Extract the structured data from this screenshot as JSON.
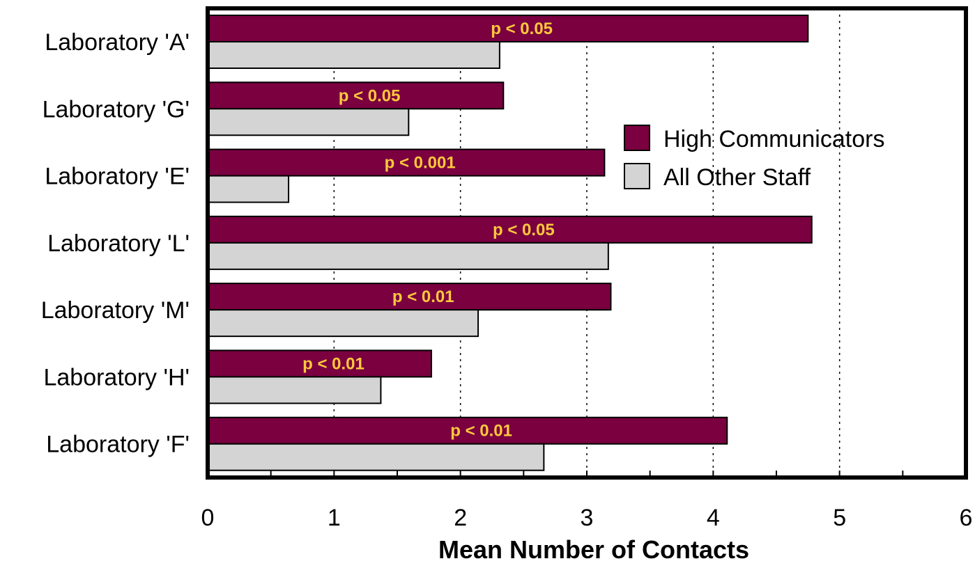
{
  "chart_data": {
    "type": "bar",
    "orientation": "horizontal",
    "title": "",
    "xlabel": "Mean Number of Contacts",
    "ylabel": "",
    "xlim": [
      0,
      6
    ],
    "x_ticks": [
      "0",
      "1",
      "2",
      "3",
      "4",
      "5",
      "6"
    ],
    "grid": "vertical dotted at major ticks",
    "legend_position": "right-middle",
    "categories": [
      "Laboratory 'A'",
      "Laboratory 'G'",
      "Laboratory 'E'",
      "Laboratory 'L'",
      "Laboratory 'M'",
      "Laboratory 'H'",
      "Laboratory 'F'"
    ],
    "series": [
      {
        "name": "High Communicators",
        "color": "#7a0040",
        "values": [
          4.75,
          2.34,
          3.14,
          4.78,
          3.19,
          1.77,
          4.11
        ]
      },
      {
        "name": "All Other Staff",
        "color": "#d4d4d4",
        "values": [
          2.31,
          1.59,
          0.64,
          3.17,
          2.14,
          1.37,
          2.66
        ]
      }
    ],
    "annotations": [
      "p < 0.05",
      "p < 0.05",
      "p < 0.001",
      "p < 0.05",
      "p < 0.01",
      "p < 0.01",
      "p < 0.01"
    ],
    "annotation_color": "#ffc83c"
  }
}
